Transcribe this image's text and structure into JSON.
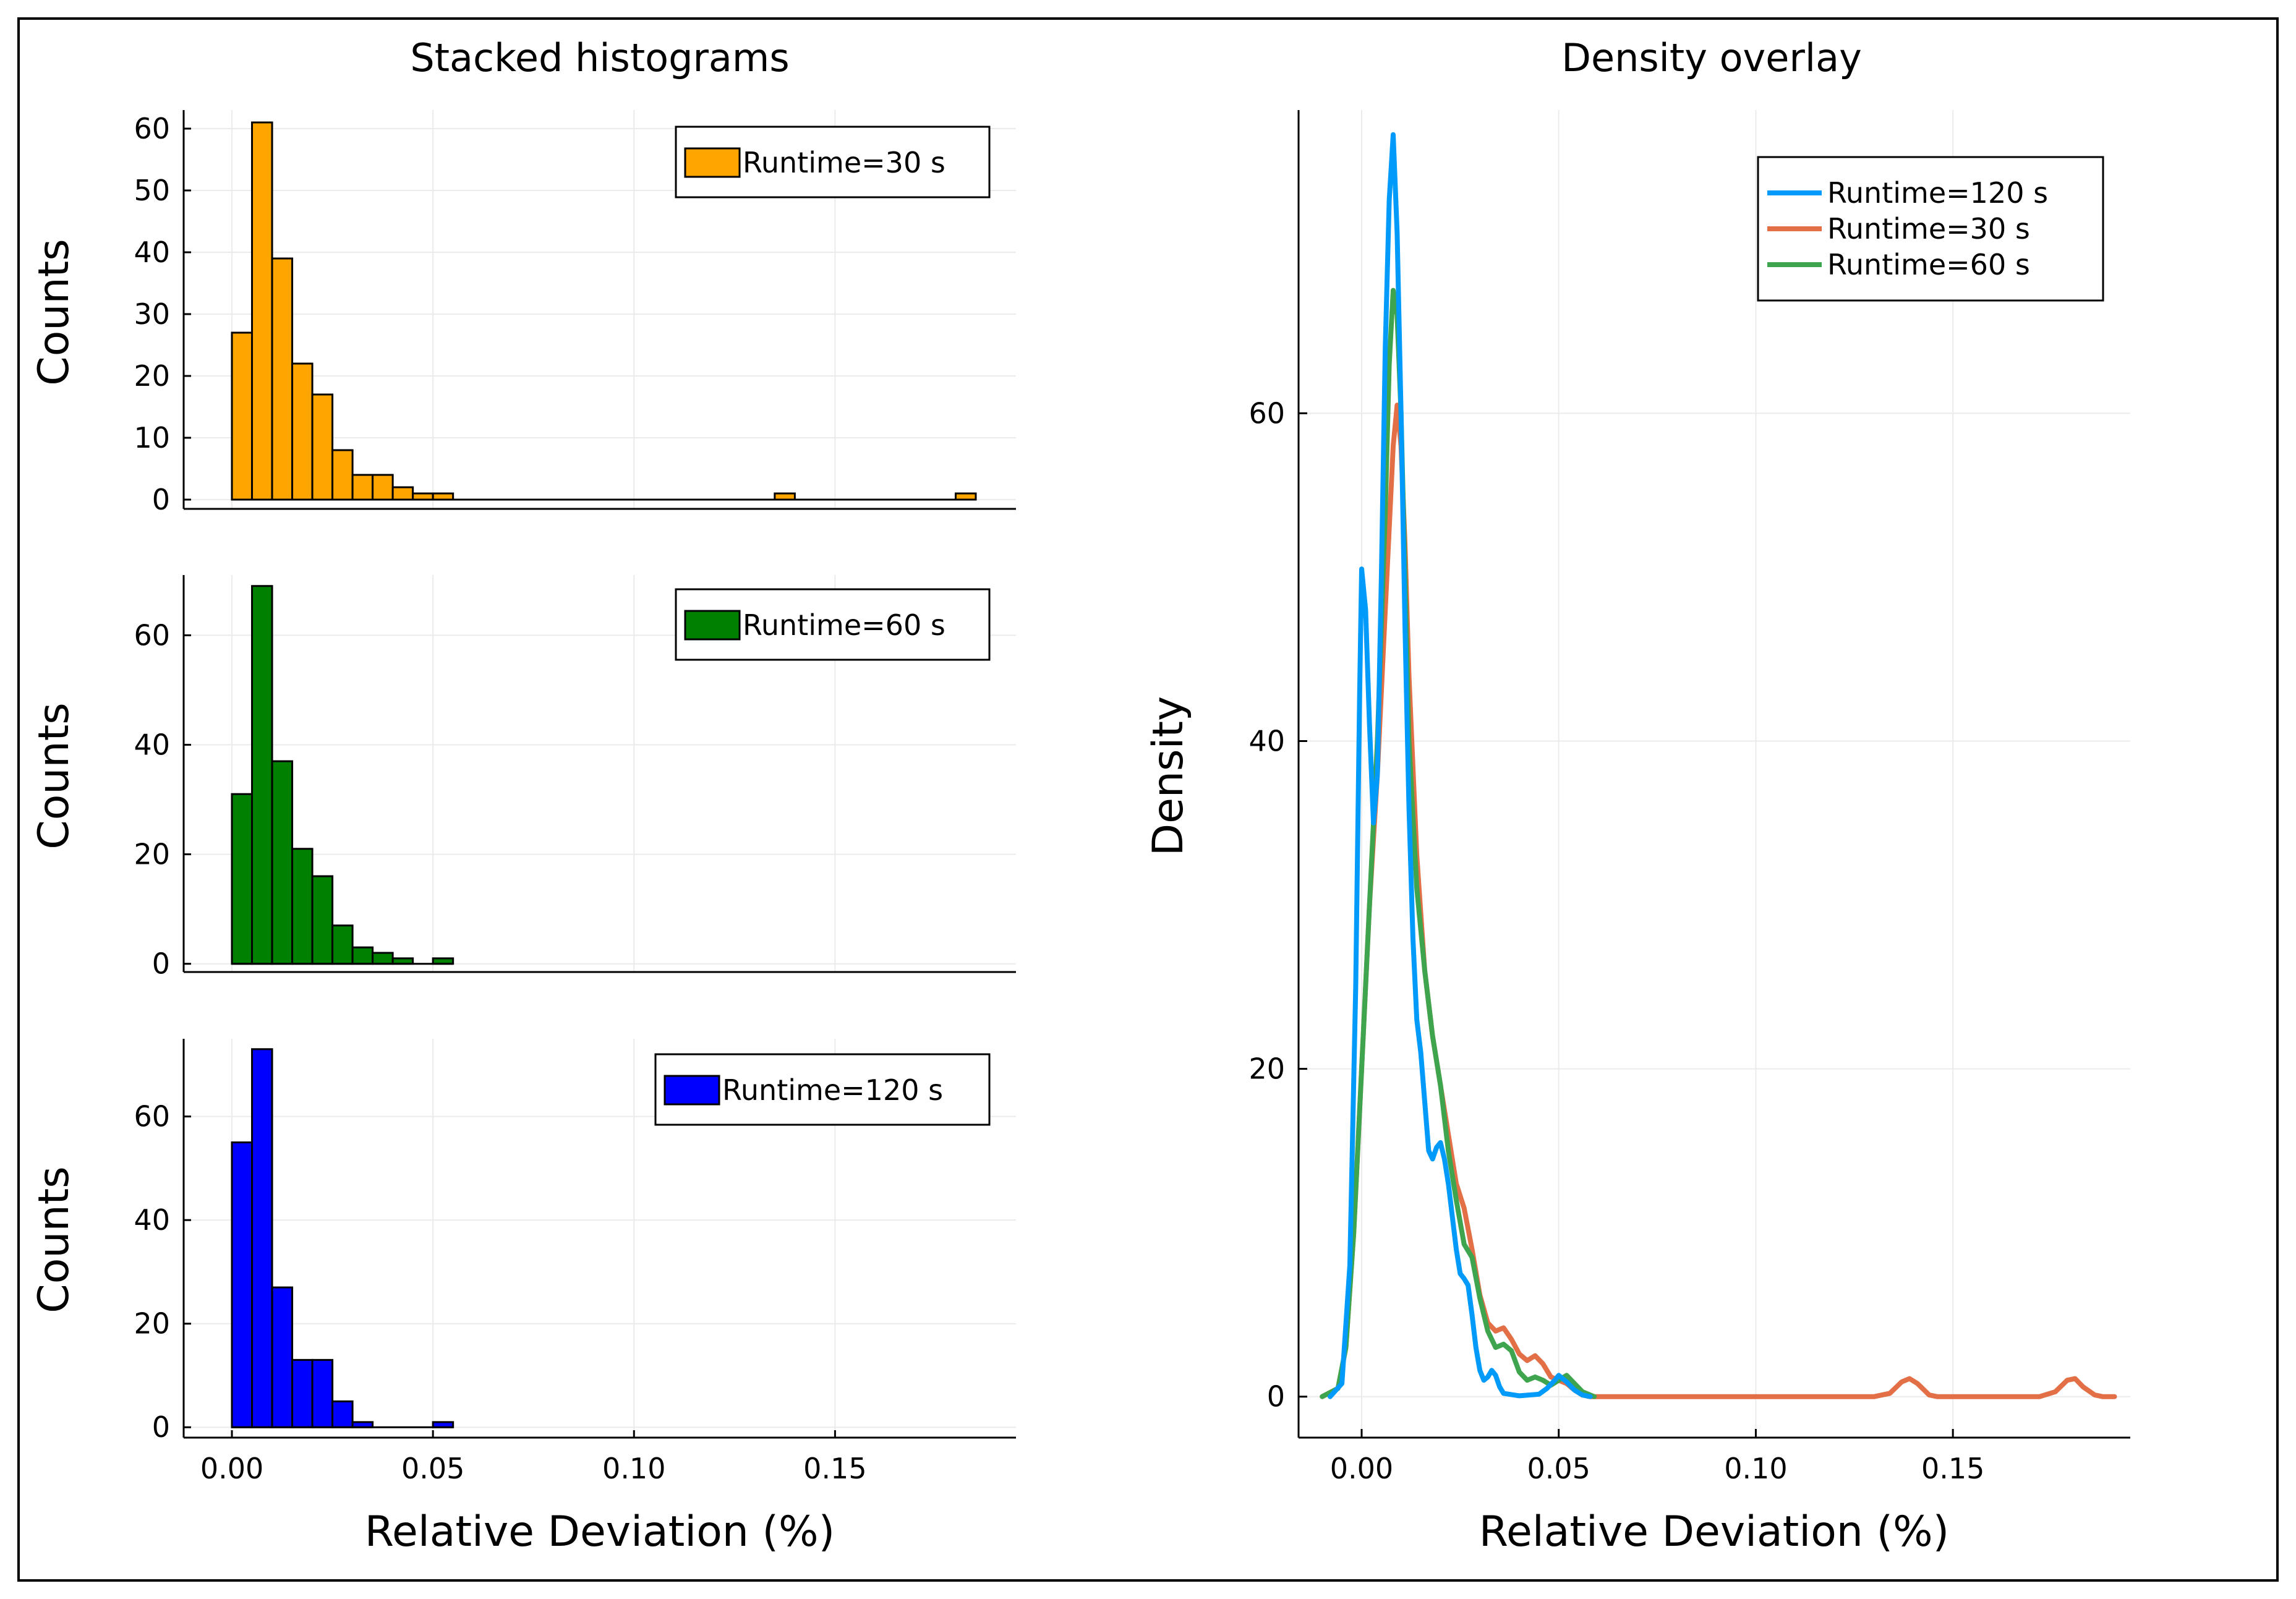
{
  "colors": {
    "orange": "#FFA500",
    "green": "#008000",
    "blue": "#0000FF",
    "line120": "#009AFA",
    "line30": "#E26F46",
    "line60": "#3EA44E"
  },
  "chart_data": [
    {
      "type": "bar",
      "panel": "stacked-top",
      "title": "Stacked histograms",
      "ylabel": "Counts",
      "xlabel": "",
      "legend": "Runtime=30 s",
      "legend_position": "top-right",
      "color": "orange",
      "bin_width": 0.005,
      "bin_starts": [
        0.0,
        0.005,
        0.01,
        0.015,
        0.02,
        0.025,
        0.03,
        0.035,
        0.04,
        0.045,
        0.05,
        0.055,
        0.06,
        0.065,
        0.07,
        0.075,
        0.08,
        0.085,
        0.09,
        0.095,
        0.1,
        0.105,
        0.11,
        0.115,
        0.12,
        0.125,
        0.13,
        0.135,
        0.14,
        0.145,
        0.15,
        0.155,
        0.16,
        0.165,
        0.17,
        0.175,
        0.18
      ],
      "values": [
        27,
        61,
        39,
        22,
        17,
        8,
        4,
        4,
        2,
        1,
        1,
        0,
        0,
        0,
        0,
        0,
        0,
        0,
        0,
        0,
        0,
        0,
        0,
        0,
        0,
        0,
        0,
        1,
        0,
        0,
        0,
        0,
        0,
        0,
        0,
        0,
        1
      ],
      "xlim": [
        -0.012,
        0.195
      ],
      "ylim": [
        -1.5,
        63
      ],
      "yticks": [
        0,
        10,
        20,
        30,
        40,
        50,
        60
      ],
      "ytick_labels": [
        "0",
        "10",
        "20",
        "30",
        "40",
        "50",
        "60"
      ],
      "grid": true
    },
    {
      "type": "bar",
      "panel": "stacked-middle",
      "ylabel": "Counts",
      "xlabel": "",
      "legend": "Runtime=60 s",
      "legend_position": "top-right",
      "color": "green",
      "bin_width": 0.005,
      "bin_starts": [
        0.0,
        0.005,
        0.01,
        0.015,
        0.02,
        0.025,
        0.03,
        0.035,
        0.04,
        0.045,
        0.05
      ],
      "values": [
        31,
        69,
        37,
        21,
        16,
        7,
        3,
        2,
        1,
        0,
        1
      ],
      "xlim": [
        -0.012,
        0.195
      ],
      "ylim": [
        -1.5,
        71
      ],
      "yticks": [
        0,
        20,
        40,
        60
      ],
      "ytick_labels": [
        "0",
        "20",
        "40",
        "60"
      ],
      "grid": true
    },
    {
      "type": "bar",
      "panel": "stacked-bottom",
      "ylabel": "Counts",
      "xlabel": "Relative Deviation (%)",
      "legend": "Runtime=120 s",
      "legend_position": "top-right",
      "color": "blue",
      "bin_width": 0.005,
      "bin_starts": [
        0.0,
        0.005,
        0.01,
        0.015,
        0.02,
        0.025,
        0.03,
        0.035,
        0.04,
        0.045,
        0.05
      ],
      "values": [
        55,
        73,
        27,
        13,
        13,
        5,
        1,
        0,
        0,
        0,
        1
      ],
      "xlim": [
        -0.012,
        0.195
      ],
      "ylim": [
        -2,
        75
      ],
      "yticks": [
        0,
        20,
        40,
        60
      ],
      "ytick_labels": [
        "0",
        "20",
        "40",
        "60"
      ],
      "xticks": [
        0.0,
        0.05,
        0.1,
        0.15
      ],
      "xtick_labels": [
        "0.00",
        "0.05",
        "0.10",
        "0.15"
      ],
      "grid": true
    },
    {
      "type": "line",
      "panel": "density",
      "title": "Density overlay",
      "xlabel": "Relative Deviation (%)",
      "ylabel": "Density",
      "legend_position": "top-right",
      "xlim": [
        -0.016,
        0.195
      ],
      "ylim": [
        -2.5,
        78.5
      ],
      "xticks": [
        0.0,
        0.05,
        0.1,
        0.15
      ],
      "xtick_labels": [
        "0.00",
        "0.05",
        "0.10",
        "0.15"
      ],
      "yticks": [
        0,
        20,
        40,
        60
      ],
      "ytick_labels": [
        "0",
        "20",
        "40",
        "60"
      ],
      "grid": true,
      "series": [
        {
          "name": "Runtime=120 s",
          "color": "line120",
          "points": [
            [
              -0.008,
              0
            ],
            [
              -0.005,
              0.8
            ],
            [
              -0.003,
              8
            ],
            [
              -0.0015,
              25
            ],
            [
              -0.0005,
              43
            ],
            [
              0.0,
              50.5
            ],
            [
              0.001,
              48
            ],
            [
              0.002,
              41
            ],
            [
              0.003,
              35
            ],
            [
              0.004,
              38
            ],
            [
              0.005,
              50
            ],
            [
              0.006,
              64
            ],
            [
              0.007,
              73
            ],
            [
              0.008,
              77
            ],
            [
              0.009,
              71
            ],
            [
              0.01,
              60
            ],
            [
              0.011,
              47
            ],
            [
              0.012,
              36
            ],
            [
              0.013,
              28
            ],
            [
              0.014,
              23
            ],
            [
              0.015,
              21
            ],
            [
              0.016,
              18
            ],
            [
              0.017,
              15
            ],
            [
              0.018,
              14.5
            ],
            [
              0.019,
              15.2
            ],
            [
              0.02,
              15.5
            ],
            [
              0.021,
              14.5
            ],
            [
              0.022,
              13
            ],
            [
              0.023,
              11
            ],
            [
              0.024,
              9
            ],
            [
              0.025,
              7.5
            ],
            [
              0.026,
              7.2
            ],
            [
              0.027,
              6.8
            ],
            [
              0.028,
              5
            ],
            [
              0.029,
              3
            ],
            [
              0.03,
              1.6
            ],
            [
              0.031,
              1.0
            ],
            [
              0.032,
              1.2
            ],
            [
              0.033,
              1.6
            ],
            [
              0.034,
              1.3
            ],
            [
              0.035,
              0.6
            ],
            [
              0.036,
              0.2
            ],
            [
              0.04,
              0.05
            ],
            [
              0.045,
              0.15
            ],
            [
              0.047,
              0.5
            ],
            [
              0.049,
              1.0
            ],
            [
              0.05,
              1.3
            ],
            [
              0.052,
              0.9
            ],
            [
              0.054,
              0.4
            ],
            [
              0.056,
              0.1
            ],
            [
              0.058,
              0
            ]
          ]
        },
        {
          "name": "Runtime=30 s",
          "color": "line30",
          "points": [
            [
              -0.01,
              0
            ],
            [
              -0.006,
              0.5
            ],
            [
              -0.004,
              3
            ],
            [
              -0.002,
              10
            ],
            [
              0.0,
              20
            ],
            [
              0.002,
              30
            ],
            [
              0.004,
              38
            ],
            [
              0.006,
              48
            ],
            [
              0.008,
              58
            ],
            [
              0.009,
              60.5
            ],
            [
              0.01,
              58
            ],
            [
              0.011,
              52
            ],
            [
              0.012,
              44
            ],
            [
              0.014,
              33
            ],
            [
              0.016,
              26
            ],
            [
              0.018,
              22
            ],
            [
              0.02,
              19
            ],
            [
              0.022,
              16
            ],
            [
              0.024,
              13
            ],
            [
              0.026,
              11.5
            ],
            [
              0.028,
              9
            ],
            [
              0.03,
              6.2
            ],
            [
              0.032,
              4.5
            ],
            [
              0.034,
              4.0
            ],
            [
              0.036,
              4.2
            ],
            [
              0.038,
              3.5
            ],
            [
              0.04,
              2.6
            ],
            [
              0.042,
              2.2
            ],
            [
              0.044,
              2.5
            ],
            [
              0.046,
              2.0
            ],
            [
              0.048,
              1.2
            ],
            [
              0.05,
              1.0
            ],
            [
              0.052,
              0.8
            ],
            [
              0.054,
              0.4
            ],
            [
              0.056,
              0.1
            ],
            [
              0.058,
              0
            ],
            [
              0.13,
              0
            ],
            [
              0.134,
              0.2
            ],
            [
              0.137,
              0.9
            ],
            [
              0.139,
              1.1
            ],
            [
              0.141,
              0.8
            ],
            [
              0.144,
              0.1
            ],
            [
              0.146,
              0
            ],
            [
              0.172,
              0
            ],
            [
              0.176,
              0.3
            ],
            [
              0.179,
              1.0
            ],
            [
              0.181,
              1.1
            ],
            [
              0.183,
              0.6
            ],
            [
              0.186,
              0.1
            ],
            [
              0.188,
              0
            ],
            [
              0.191,
              0
            ]
          ]
        },
        {
          "name": "Runtime=60 s",
          "color": "line60",
          "points": [
            [
              -0.01,
              0
            ],
            [
              -0.006,
              0.5
            ],
            [
              -0.004,
              3
            ],
            [
              -0.002,
              10
            ],
            [
              0.0,
              20
            ],
            [
              0.002,
              30
            ],
            [
              0.004,
              40
            ],
            [
              0.006,
              54
            ],
            [
              0.007,
              63
            ],
            [
              0.008,
              67.5
            ],
            [
              0.009,
              66
            ],
            [
              0.01,
              60
            ],
            [
              0.011,
              50
            ],
            [
              0.012,
              40
            ],
            [
              0.014,
              31
            ],
            [
              0.016,
              26
            ],
            [
              0.018,
              22
            ],
            [
              0.02,
              19
            ],
            [
              0.022,
              15
            ],
            [
              0.024,
              12
            ],
            [
              0.026,
              9.3
            ],
            [
              0.028,
              8.5
            ],
            [
              0.03,
              6
            ],
            [
              0.032,
              4
            ],
            [
              0.034,
              3.0
            ],
            [
              0.036,
              3.2
            ],
            [
              0.038,
              2.8
            ],
            [
              0.04,
              1.5
            ],
            [
              0.042,
              1.0
            ],
            [
              0.044,
              1.2
            ],
            [
              0.046,
              1.0
            ],
            [
              0.048,
              0.7
            ],
            [
              0.05,
              1.0
            ],
            [
              0.052,
              1.3
            ],
            [
              0.054,
              0.8
            ],
            [
              0.056,
              0.3
            ],
            [
              0.059,
              0
            ]
          ]
        }
      ]
    }
  ]
}
